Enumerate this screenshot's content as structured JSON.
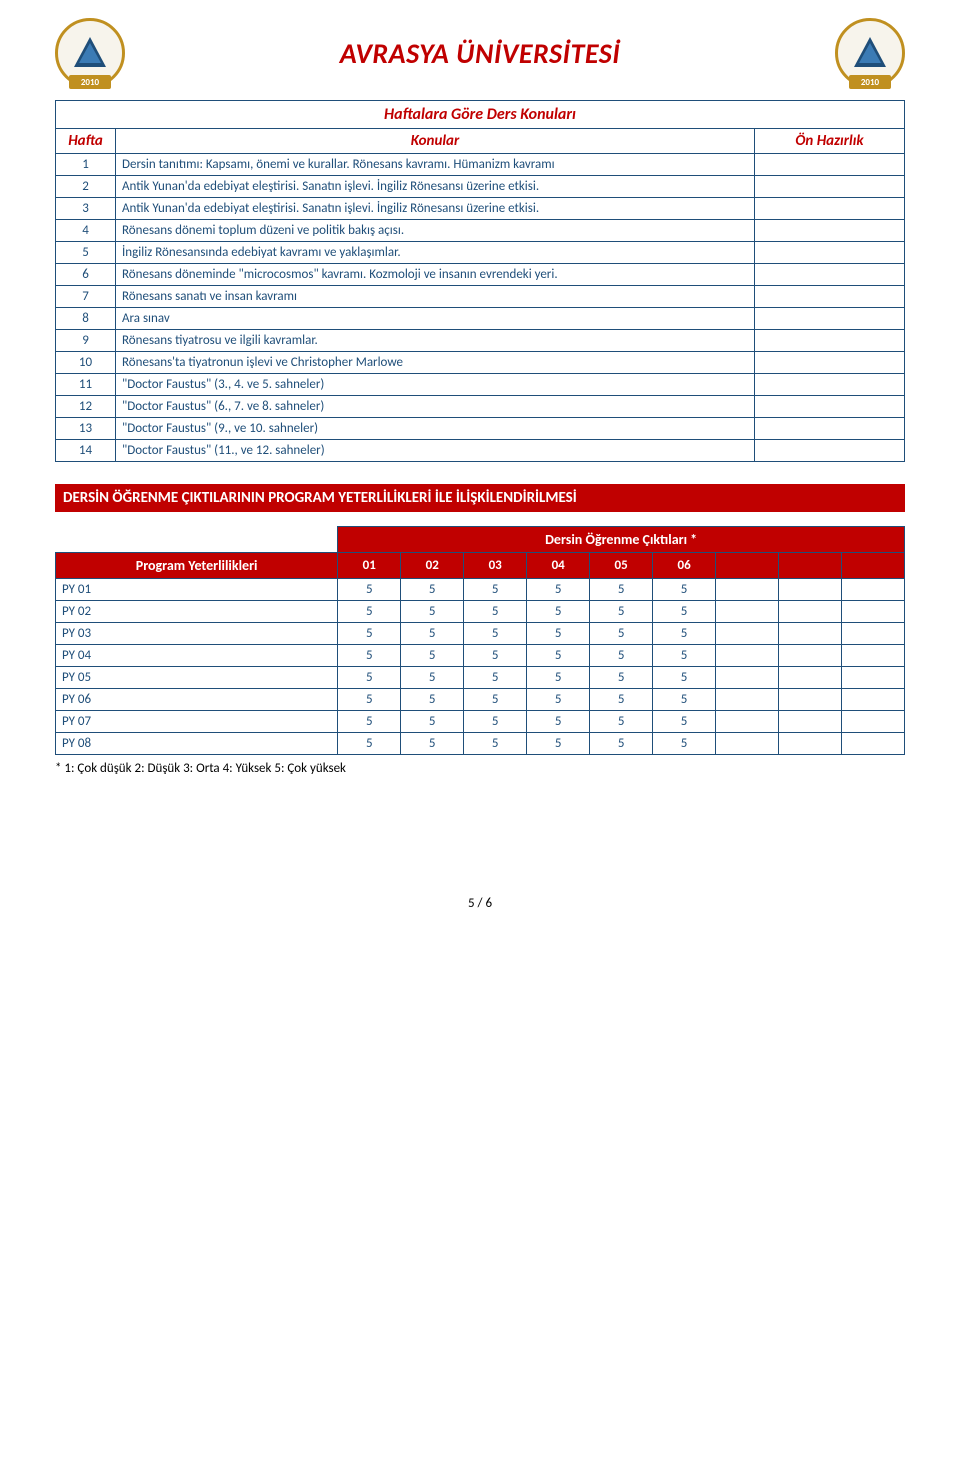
{
  "header": {
    "title": "AVRASYA ÜNİVERSİTESİ",
    "logo_year": "2010"
  },
  "weekly": {
    "title": "Haftalara Göre Ders Konuları",
    "col_week": "Hafta",
    "col_topic": "Konular",
    "col_prep": "Ön Hazırlık",
    "rows": [
      {
        "n": "1",
        "t": "Dersin tanıtımı: Kapsamı, önemi ve kurallar. Rönesans kavramı. Hümanizm kavramı"
      },
      {
        "n": "2",
        "t": "Antik Yunan'da edebiyat eleştirisi. Sanatın işlevi. İngiliz Rönesansı üzerine etkisi."
      },
      {
        "n": "3",
        "t": "Antik Yunan'da edebiyat eleştirisi. Sanatın işlevi. İngiliz Rönesansı üzerine etkisi."
      },
      {
        "n": "4",
        "t": "Rönesans dönemi toplum düzeni ve politik bakış açısı."
      },
      {
        "n": "5",
        "t": "İngiliz Rönesansında edebiyat kavramı ve yaklaşımlar."
      },
      {
        "n": "6",
        "t": "Rönesans döneminde \"microcosmos\" kavramı. Kozmoloji ve insanın evrendeki yeri."
      },
      {
        "n": "7",
        "t": "Rönesans sanatı ve insan kavramı"
      },
      {
        "n": "8",
        "t": "Ara sınav"
      },
      {
        "n": "9",
        "t": "Rönesans tiyatrosu ve ilgili kavramlar."
      },
      {
        "n": "10",
        "t": "Rönesans'ta tiyatronun işlevi ve Christopher Marlowe"
      },
      {
        "n": "11",
        "t": "\"Doctor Faustus\" (3., 4. ve 5. sahneler)"
      },
      {
        "n": "12",
        "t": "\"Doctor Faustus\" (6., 7. ve 8. sahneler)"
      },
      {
        "n": "13",
        "t": "\"Doctor Faustus\" (9., ve 10. sahneler)"
      },
      {
        "n": "14",
        "t": "\"Doctor Faustus\" (11., ve 12. sahneler)"
      }
    ]
  },
  "section_banner": "DERSİN ÖĞRENME ÇIKTILARININ PROGRAM YETERLİLİKLERİ İLE İLİŞKİLENDİRİLMESİ",
  "matrix": {
    "outcomes_title": "Dersin Öğrenme Çıktıları *",
    "py_title": "Program Yeterlilikleri",
    "cols": [
      "01",
      "02",
      "03",
      "04",
      "05",
      "06"
    ],
    "rows": [
      {
        "name": "PY 01",
        "vals": [
          "5",
          "5",
          "5",
          "5",
          "5",
          "5"
        ]
      },
      {
        "name": "PY 02",
        "vals": [
          "5",
          "5",
          "5",
          "5",
          "5",
          "5"
        ]
      },
      {
        "name": "PY 03",
        "vals": [
          "5",
          "5",
          "5",
          "5",
          "5",
          "5"
        ]
      },
      {
        "name": "PY 04",
        "vals": [
          "5",
          "5",
          "5",
          "5",
          "5",
          "5"
        ]
      },
      {
        "name": "PY 05",
        "vals": [
          "5",
          "5",
          "5",
          "5",
          "5",
          "5"
        ]
      },
      {
        "name": "PY 06",
        "vals": [
          "5",
          "5",
          "5",
          "5",
          "5",
          "5"
        ]
      },
      {
        "name": "PY 07",
        "vals": [
          "5",
          "5",
          "5",
          "5",
          "5",
          "5"
        ]
      },
      {
        "name": "PY 08",
        "vals": [
          "5",
          "5",
          "5",
          "5",
          "5",
          "5"
        ]
      }
    ]
  },
  "footnote": "* 1: Çok düşük 2: Düşük 3: Orta 4: Yüksek 5: Çok yüksek",
  "pager": "5 / 6",
  "colors": {
    "red": "#c00000",
    "navy": "#1f4e79",
    "white": "#ffffff"
  }
}
